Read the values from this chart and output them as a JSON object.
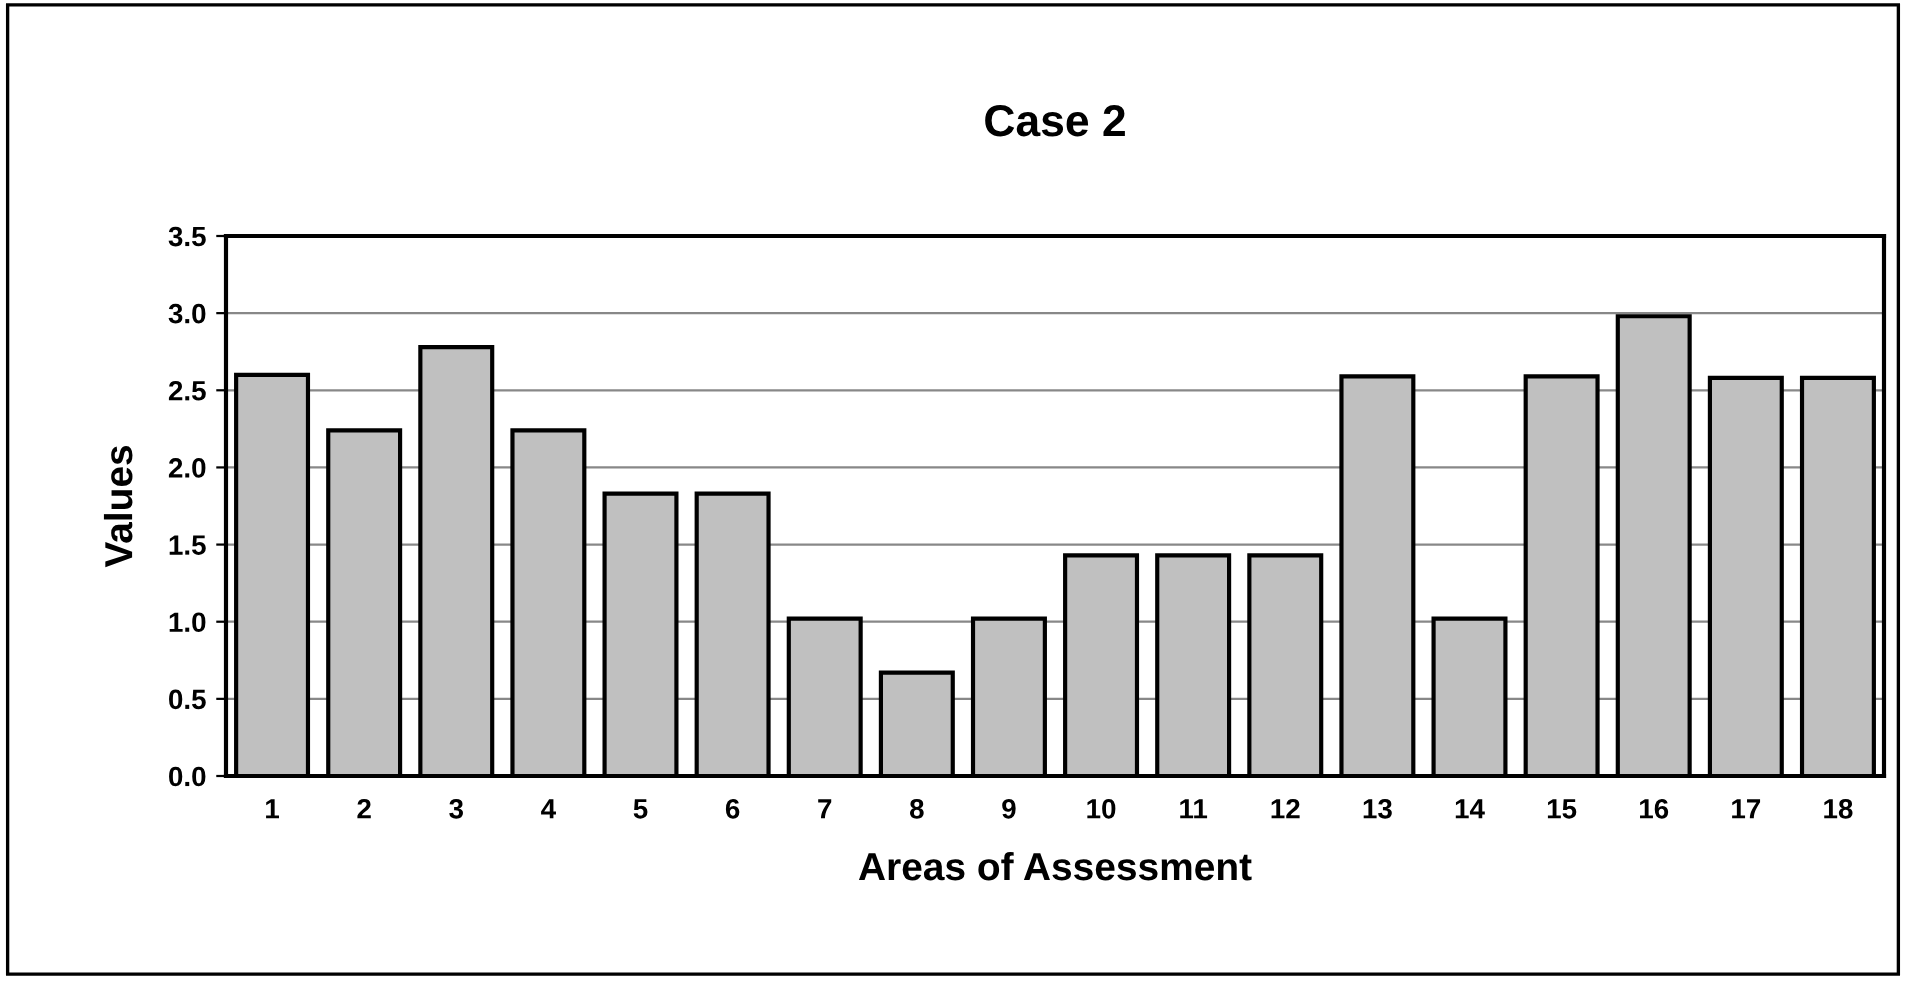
{
  "chart_data": {
    "type": "bar",
    "title": "Case 2",
    "xlabel": "Areas of Assessment",
    "ylabel": "Values",
    "categories": [
      "1",
      "2",
      "3",
      "4",
      "5",
      "6",
      "7",
      "8",
      "9",
      "10",
      "11",
      "12",
      "13",
      "14",
      "15",
      "16",
      "17",
      "18"
    ],
    "values": [
      2.6,
      2.24,
      2.78,
      2.24,
      1.83,
      1.83,
      1.02,
      0.67,
      1.02,
      1.43,
      1.43,
      1.43,
      2.59,
      1.02,
      2.59,
      2.98,
      2.58,
      2.58
    ],
    "color": "#c0c0c0",
    "ylim": [
      0,
      3.5
    ],
    "yticks": [
      {
        "value": 0,
        "label": "0.0"
      },
      {
        "value": 0.5,
        "label": "0.5"
      },
      {
        "value": 1,
        "label": "1.0"
      },
      {
        "value": 1.5,
        "label": "1.5"
      },
      {
        "value": 2,
        "label": "2.0"
      },
      {
        "value": 2.5,
        "label": "2.5"
      },
      {
        "value": 3,
        "label": "3.0"
      },
      {
        "value": 3.5,
        "label": "3.5"
      }
    ],
    "grid": "y",
    "legend": false
  }
}
